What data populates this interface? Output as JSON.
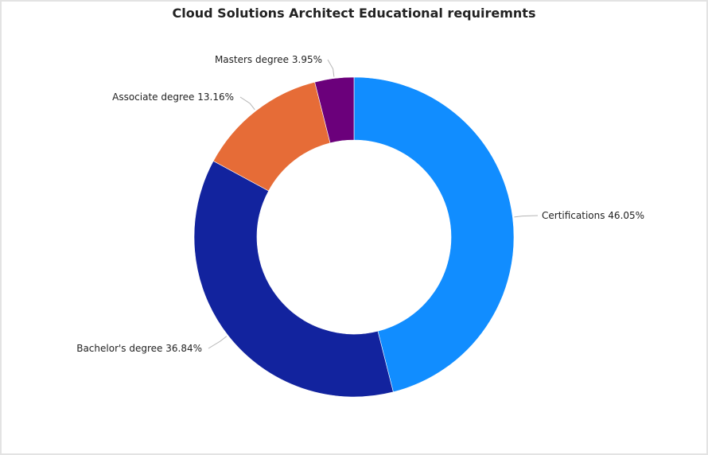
{
  "chart_data": {
    "type": "pie",
    "variant": "donut",
    "title": "Cloud Solutions Architect Educational requiremnts",
    "slices": [
      {
        "label": "Certifications 46.05%",
        "value": 46.05,
        "color": "#118dff"
      },
      {
        "label": "Bachelor's degree 36.84%",
        "value": 36.84,
        "color": "#12239e"
      },
      {
        "label": "Associate degree 13.16%",
        "value": 13.16,
        "color": "#e66c37"
      },
      {
        "label": "Masters degree 3.95%",
        "value": 3.95,
        "color": "#6b007b"
      }
    ],
    "legend": "none",
    "start": "top",
    "direction": "clockwise"
  }
}
